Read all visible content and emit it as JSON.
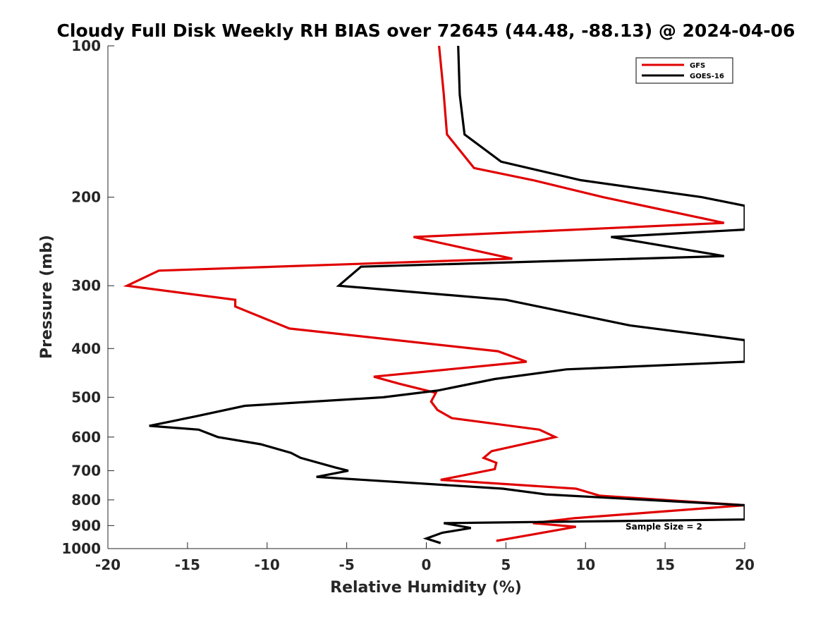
{
  "chart_data": {
    "type": "line",
    "title": "Cloudy Full Disk Weekly RH BIAS over 72645 (44.48, -88.13) @ 2024-04-06",
    "xlabel": "Relative Humidity (%)",
    "ylabel": "Pressure (mb)",
    "xlim": [
      -20,
      20
    ],
    "ylim": [
      100,
      1000
    ],
    "y_scale": "log",
    "y_reversed": true,
    "x_ticks": [
      "-20",
      "-15",
      "-10",
      "-5",
      "0",
      "5",
      "10",
      "15",
      "20"
    ],
    "y_ticks": [
      "100",
      "200",
      "300",
      "400",
      "500",
      "600",
      "700",
      "800",
      "900",
      "1000"
    ],
    "grid": false,
    "legend_position": "top-right",
    "annotation": "Sample Size = 2",
    "series": [
      {
        "name": "GFS",
        "color": "#e00000",
        "points": [
          [
            0.8,
            100
          ],
          [
            1.1,
            125
          ],
          [
            1.3,
            150
          ],
          [
            3.0,
            175
          ],
          [
            6.7,
            185
          ],
          [
            11.1,
            200
          ],
          [
            18.7,
            225
          ],
          [
            -0.8,
            240
          ],
          [
            5.4,
            265
          ],
          [
            -16.8,
            280
          ],
          [
            -18.8,
            300
          ],
          [
            -12.0,
            320
          ],
          [
            -12.0,
            330
          ],
          [
            -8.6,
            365
          ],
          [
            4.5,
            405
          ],
          [
            6.3,
            425
          ],
          [
            -3.3,
            455
          ],
          [
            -1.7,
            470
          ],
          [
            0.6,
            490
          ],
          [
            0.3,
            510
          ],
          [
            0.7,
            530
          ],
          [
            1.6,
            550
          ],
          [
            7.1,
            580
          ],
          [
            8.1,
            600
          ],
          [
            4.1,
            640
          ],
          [
            3.6,
            660
          ],
          [
            4.4,
            675
          ],
          [
            4.3,
            695
          ],
          [
            0.9,
            730
          ],
          [
            9.4,
            760
          ],
          [
            10.9,
            785
          ],
          [
            20.0,
            820
          ],
          [
            9.3,
            870
          ],
          [
            6.7,
            890
          ],
          [
            9.4,
            905
          ],
          [
            4.4,
            965
          ]
        ]
      },
      {
        "name": "GOES-16",
        "color": "#000000",
        "points": [
          [
            2.0,
            100
          ],
          [
            2.1,
            125
          ],
          [
            2.4,
            150
          ],
          [
            4.7,
            170
          ],
          [
            9.7,
            185
          ],
          [
            17.3,
            200
          ],
          [
            20.0,
            208
          ],
          [
            20.0,
            232
          ],
          [
            11.6,
            240
          ],
          [
            18.7,
            262
          ],
          [
            -4.1,
            275
          ],
          [
            -5.5,
            300
          ],
          [
            5.0,
            320
          ],
          [
            12.8,
            360
          ],
          [
            20.0,
            385
          ],
          [
            20.0,
            425
          ],
          [
            8.8,
            440
          ],
          [
            4.3,
            460
          ],
          [
            0.7,
            485
          ],
          [
            -2.7,
            500
          ],
          [
            -11.4,
            520
          ],
          [
            -14.4,
            545
          ],
          [
            -17.4,
            570
          ],
          [
            -14.3,
            580
          ],
          [
            -13.1,
            600
          ],
          [
            -10.4,
            620
          ],
          [
            -8.5,
            645
          ],
          [
            -7.9,
            660
          ],
          [
            -5.7,
            690
          ],
          [
            -4.9,
            700
          ],
          [
            -6.9,
            720
          ],
          [
            4.8,
            760
          ],
          [
            7.5,
            780
          ],
          [
            20.0,
            820
          ],
          [
            20.0,
            875
          ],
          [
            1.1,
            890
          ],
          [
            2.8,
            910
          ],
          [
            1.0,
            930
          ],
          [
            0.0,
            955
          ],
          [
            0.9,
            975
          ]
        ]
      }
    ]
  }
}
